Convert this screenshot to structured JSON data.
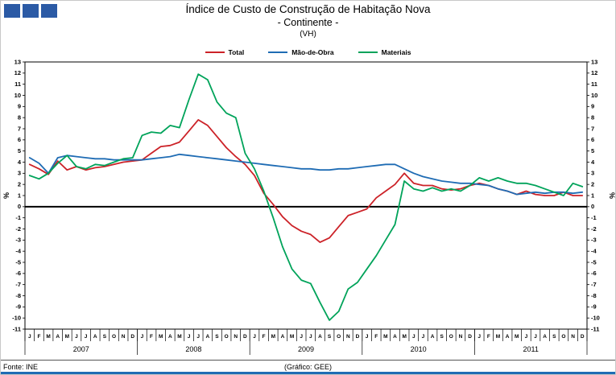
{
  "logo": {
    "color": "#2b5aa5",
    "square_count": 3
  },
  "title": {
    "line1": "Índice de Custo de Construção de Habitação Nova",
    "line2": "- Continente -",
    "line3": "(VH)"
  },
  "footer": {
    "source": "Fonte: INE",
    "credit": "(Gráfico: GEE)"
  },
  "colors": {
    "bottom_bar": "#1f6cb4",
    "footer_rule": "#555555",
    "zero_line": "#000000"
  },
  "chart_data": {
    "type": "line",
    "title": "Índice de Custo de Construção de Habitação Nova - Continente - (VH)",
    "xlabel": "",
    "ylabel": "%",
    "ylabel_right": "%",
    "ylim": [
      -11,
      13
    ],
    "ytick_step": 1,
    "grid": false,
    "legend_position": "top",
    "years": [
      "2007",
      "2008",
      "2009",
      "2010",
      "2011"
    ],
    "months": [
      "J",
      "F",
      "M",
      "A",
      "M",
      "J",
      "J",
      "A",
      "S",
      "O",
      "N",
      "D"
    ],
    "series": [
      {
        "name": "Total",
        "color": "#cc2228",
        "values": [
          3.8,
          3.4,
          2.9,
          4.1,
          3.3,
          3.6,
          3.3,
          3.5,
          3.6,
          3.8,
          4.0,
          4.1,
          4.2,
          4.8,
          5.4,
          5.5,
          5.8,
          6.8,
          7.8,
          7.3,
          6.3,
          5.3,
          4.5,
          3.8,
          2.8,
          1.2,
          0.2,
          -0.9,
          -1.7,
          -2.2,
          -2.5,
          -3.2,
          -2.8,
          -1.8,
          -0.8,
          -0.5,
          -0.2,
          0.8,
          1.4,
          2.0,
          3.0,
          2.1,
          1.9,
          1.9,
          1.6,
          1.5,
          1.6,
          1.9,
          2.1,
          1.9,
          1.6,
          1.4,
          1.1,
          1.4,
          1.1,
          1.0,
          1.0,
          1.3,
          1.0,
          1.0
        ]
      },
      {
        "name": "Mão-de-Obra",
        "color": "#1f6cb4",
        "values": [
          4.4,
          3.9,
          3.0,
          4.4,
          4.6,
          4.5,
          4.4,
          4.3,
          4.3,
          4.2,
          4.2,
          4.2,
          4.2,
          4.3,
          4.4,
          4.5,
          4.7,
          4.6,
          4.5,
          4.4,
          4.3,
          4.2,
          4.1,
          4.0,
          3.9,
          3.8,
          3.7,
          3.6,
          3.5,
          3.4,
          3.4,
          3.3,
          3.3,
          3.4,
          3.4,
          3.5,
          3.6,
          3.7,
          3.8,
          3.8,
          3.4,
          3.0,
          2.7,
          2.5,
          2.3,
          2.2,
          2.1,
          2.1,
          2.0,
          1.9,
          1.6,
          1.4,
          1.1,
          1.2,
          1.3,
          1.2,
          1.3,
          1.3,
          1.2,
          1.3
        ]
      },
      {
        "name": "Materiais",
        "color": "#00a35a",
        "values": [
          2.8,
          2.5,
          3.0,
          3.9,
          4.6,
          3.6,
          3.4,
          3.8,
          3.7,
          4.0,
          4.3,
          4.4,
          6.4,
          6.7,
          6.6,
          7.3,
          7.1,
          9.6,
          11.9,
          11.4,
          9.4,
          8.4,
          8.0,
          4.8,
          3.4,
          1.4,
          -1.0,
          -3.6,
          -5.6,
          -6.6,
          -6.9,
          -8.6,
          -10.2,
          -9.4,
          -7.4,
          -6.8,
          -5.6,
          -4.4,
          -3.0,
          -1.6,
          2.3,
          1.6,
          1.4,
          1.7,
          1.4,
          1.6,
          1.4,
          1.9,
          2.6,
          2.3,
          2.6,
          2.3,
          2.1,
          2.1,
          1.9,
          1.6,
          1.3,
          1.0,
          2.1,
          1.8
        ]
      }
    ]
  }
}
